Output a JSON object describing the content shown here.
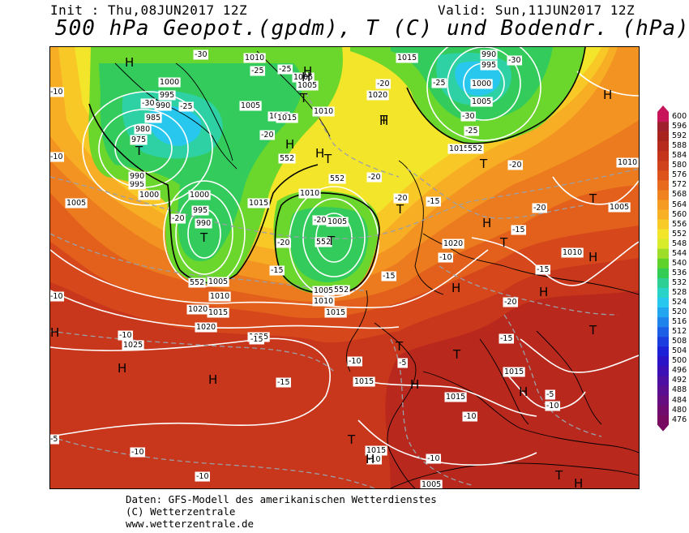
{
  "header": {
    "init": "Init : Thu,08JUN2017 12Z",
    "valid": "Valid: Sun,11JUN2017 12Z",
    "title": "500 hPa Geopot.(gpdm), T (C) und Bodendr. (hPa)"
  },
  "legend": {
    "levels": [
      {
        "value": "600",
        "color": "#c8145a"
      },
      {
        "value": "596",
        "color": "#a01f2d"
      },
      {
        "value": "592",
        "color": "#a8221e"
      },
      {
        "value": "588",
        "color": "#b52a1c"
      },
      {
        "value": "584",
        "color": "#c3341b"
      },
      {
        "value": "580",
        "color": "#d0421b"
      },
      {
        "value": "576",
        "color": "#dc541c"
      },
      {
        "value": "572",
        "color": "#e86a1d"
      },
      {
        "value": "568",
        "color": "#f0821f"
      },
      {
        "value": "564",
        "color": "#f59a22"
      },
      {
        "value": "560",
        "color": "#f8b124"
      },
      {
        "value": "556",
        "color": "#f8cb27"
      },
      {
        "value": "552",
        "color": "#f3e52a"
      },
      {
        "value": "548",
        "color": "#d8ec2c"
      },
      {
        "value": "544",
        "color": "#9ede2b"
      },
      {
        "value": "540",
        "color": "#5fd32b"
      },
      {
        "value": "536",
        "color": "#33cc55"
      },
      {
        "value": "532",
        "color": "#2dcf95"
      },
      {
        "value": "528",
        "color": "#2ad3c8"
      },
      {
        "value": "524",
        "color": "#28c8ee"
      },
      {
        "value": "520",
        "color": "#22a6ef"
      },
      {
        "value": "516",
        "color": "#1f83ec"
      },
      {
        "value": "512",
        "color": "#1c5ee6"
      },
      {
        "value": "508",
        "color": "#1b3ddf"
      },
      {
        "value": "504",
        "color": "#1c20d6"
      },
      {
        "value": "500",
        "color": "#2a14c6"
      },
      {
        "value": "496",
        "color": "#3c10b4"
      },
      {
        "value": "492",
        "color": "#4c0fa2"
      },
      {
        "value": "488",
        "color": "#5a0e90"
      },
      {
        "value": "484",
        "color": "#660d7f"
      },
      {
        "value": "480",
        "color": "#700c6e"
      },
      {
        "value": "476",
        "color": "#760b60"
      }
    ]
  },
  "map_labels": {
    "pressure": [
      "1010",
      "1005",
      "1015",
      "1000",
      "995",
      "990",
      "985",
      "980",
      "975",
      "1005",
      "1000",
      "995",
      "990",
      "1005",
      "1000",
      "995",
      "990",
      "1010",
      "1015",
      "1005",
      "1010",
      "1015",
      "1020",
      "1025",
      "1015",
      "1015",
      "1010",
      "1005",
      "1020",
      "1015",
      "1010",
      "1005",
      "1025",
      "1015",
      "1015",
      "1015",
      "1005",
      "1010",
      "1005",
      "1020",
      "1015",
      "1000",
      "1005",
      "995",
      "990",
      "1010",
      "1005",
      "1015",
      "1020"
    ],
    "temperature": [
      "-30",
      "-25",
      "-25",
      "-30",
      "-25",
      "-20",
      "-20",
      "-20",
      "-15",
      "-20",
      "-25",
      "-30",
      "-30",
      "-25",
      "-20",
      "-20",
      "-20",
      "-15",
      "-15",
      "-10",
      "-10",
      "-15",
      "-15",
      "-10",
      "-10",
      "-10",
      "-5",
      "-5",
      "-10",
      "-10",
      "-10",
      "-10",
      "-5",
      "-10",
      "-10",
      "-15",
      "-20",
      "-15",
      "-10",
      "-20",
      "-20",
      "-15"
    ],
    "geopotential": [
      "552",
      "552",
      "552",
      "552",
      "552",
      "552"
    ],
    "highs": [
      "H",
      "H",
      "H",
      "H",
      "H",
      "H",
      "H",
      "H",
      "H",
      "H",
      "H",
      "H",
      "H",
      "H",
      "H",
      "H",
      "H",
      "H"
    ],
    "lows": [
      "T",
      "T",
      "T",
      "T",
      "T",
      "T",
      "T",
      "T",
      "T",
      "T",
      "T",
      "T",
      "T",
      "T",
      "T"
    ]
  },
  "footer": {
    "line1": "Daten: GFS-Modell des amerikanischen Wetterdienstes",
    "line2": "(C) Wetterzentrale",
    "line3": "www.wetterzentrale.de"
  }
}
